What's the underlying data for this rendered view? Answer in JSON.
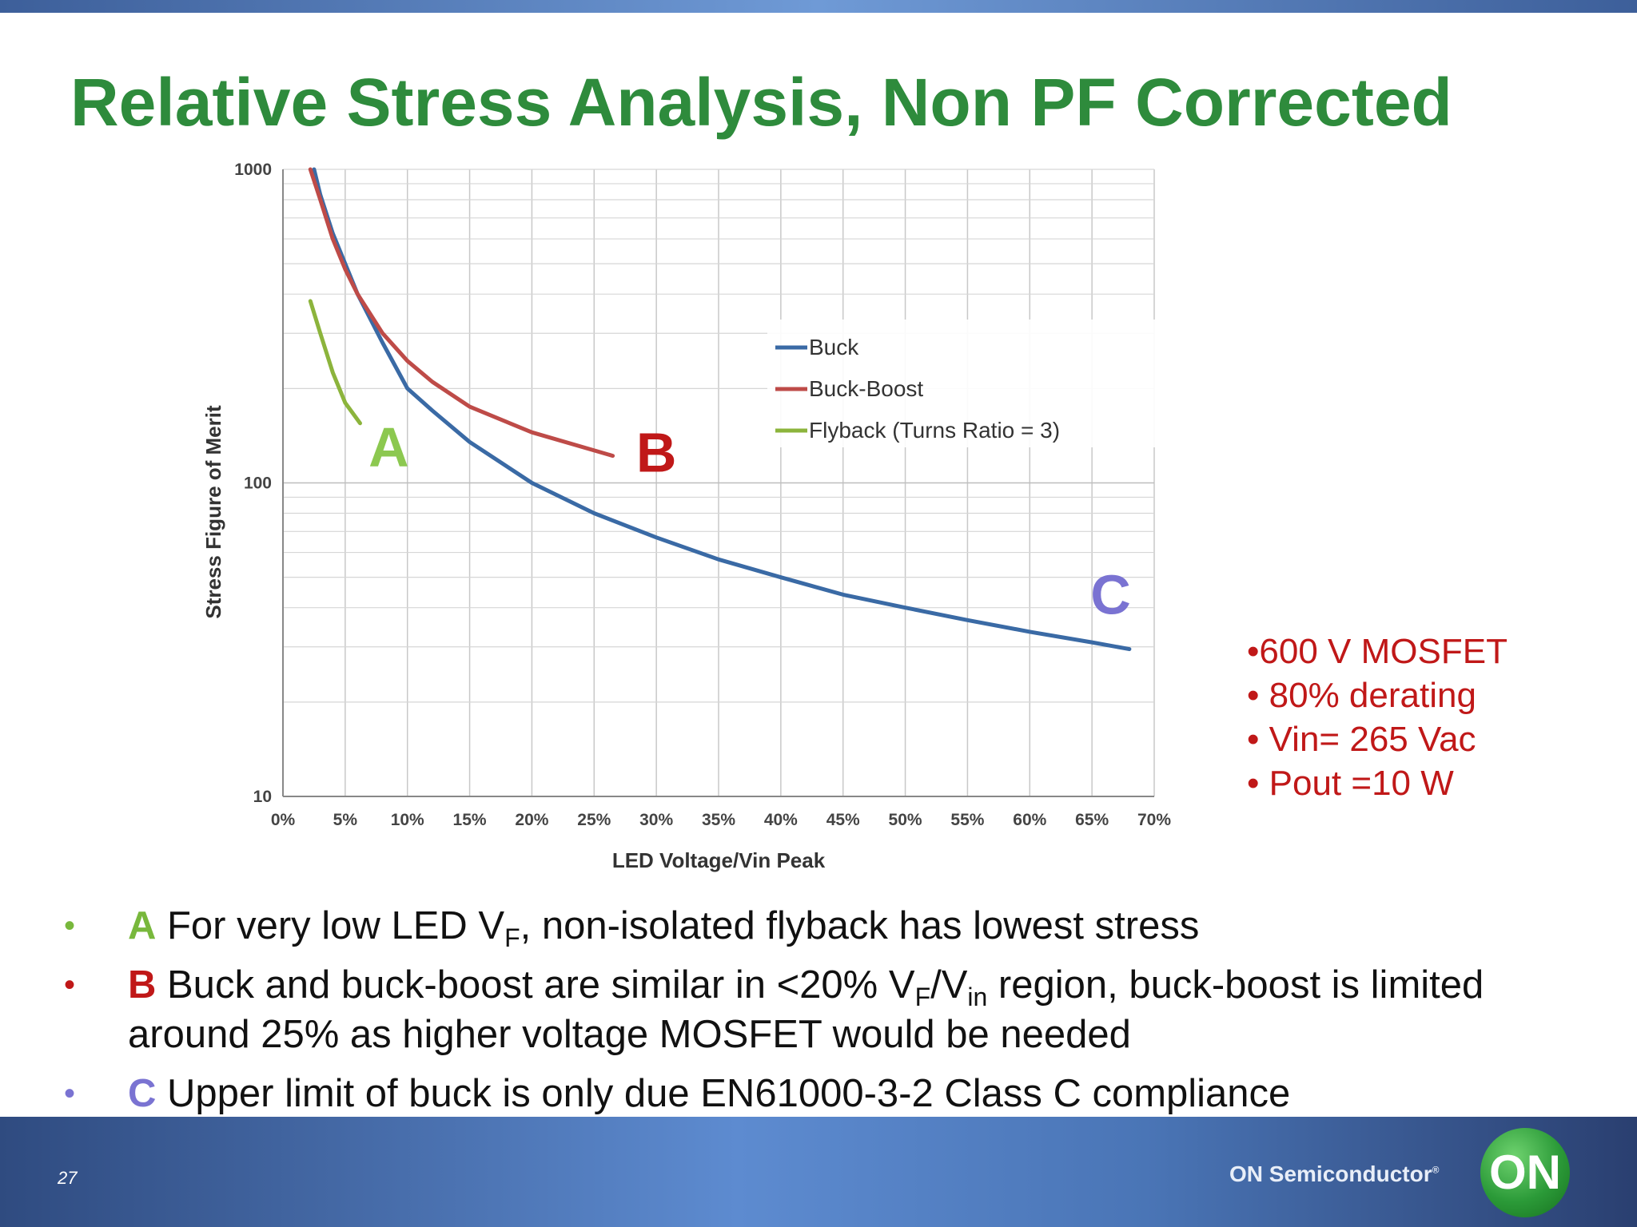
{
  "slide": {
    "title": "Relative Stress Analysis, Non PF Corrected",
    "page_number": "27",
    "brand": "ON Semiconductor",
    "brand_mark": "®",
    "logo_text": "ON"
  },
  "notes": [
    "•600 V MOSFET",
    "• 80% derating",
    "• Vin= 265 Vac",
    "• Pout =10 W"
  ],
  "bullets": [
    {
      "key": "A",
      "color": "#78b83c",
      "dot_color": "#78b83c",
      "pre": " For very low LED V",
      "sub": "F",
      "post": ", non-isolated flyback has lowest stress"
    },
    {
      "key": "B",
      "color": "#c01818",
      "dot_color": "#c01818",
      "pre": " Buck and buck-boost are similar in <20% V",
      "sub": "F",
      "mid": "/V",
      "sub2": "in",
      "post": " region, buck-boost is limited",
      "line2": "around 25% as higher voltage MOSFET would be needed"
    },
    {
      "key": "C",
      "color": "#7a73d2",
      "dot_color": "#7a73d2",
      "pre": " Upper limit of buck is only due EN61000-3-2 Class C compliance"
    }
  ],
  "chart_data": {
    "type": "line",
    "xlabel": "LED Voltage/Vin Peak",
    "ylabel": "Stress Figure of Merit",
    "y_scale": "log",
    "xlim": [
      0,
      70
    ],
    "ylim": [
      10,
      1000
    ],
    "x_ticks": [
      "0%",
      "5%",
      "10%",
      "15%",
      "20%",
      "25%",
      "30%",
      "35%",
      "40%",
      "45%",
      "50%",
      "55%",
      "60%",
      "65%",
      "70%"
    ],
    "y_ticks": [
      "10",
      "100",
      "1000"
    ],
    "grid": true,
    "legend_position": "upper-right",
    "series": [
      {
        "name": "Buck",
        "color": "#3a6aa5",
        "x": [
          2.5,
          3,
          4,
          5,
          6,
          8,
          10,
          12,
          15,
          20,
          25,
          30,
          35,
          40,
          45,
          50,
          55,
          60,
          65,
          68
        ],
        "y": [
          1000,
          830,
          625,
          500,
          400,
          280,
          200,
          170,
          135,
          100,
          80,
          67,
          57,
          50,
          44,
          40,
          36.5,
          33.5,
          31,
          29.5
        ]
      },
      {
        "name": "Buck-Boost",
        "color": "#be4b48",
        "x": [
          2.2,
          3,
          4,
          5,
          6,
          8,
          10,
          12,
          15,
          20,
          26.5
        ],
        "y": [
          1000,
          800,
          600,
          480,
          400,
          300,
          245,
          210,
          175,
          145,
          122
        ]
      },
      {
        "name": "Flyback (Turns Ratio = 3)",
        "color": "#8cb43c",
        "x": [
          2.2,
          3,
          4,
          5,
          6.2
        ],
        "y": [
          380,
          300,
          225,
          180,
          155
        ]
      }
    ],
    "annotations": [
      {
        "text": "A",
        "x": 8.5,
        "y": 130,
        "color": "#8cc850"
      },
      {
        "text": "B",
        "x": 30,
        "y": 125,
        "color": "#c01818"
      },
      {
        "text": "C",
        "x": 66.5,
        "y": 44,
        "color": "#7a73d2"
      }
    ]
  }
}
